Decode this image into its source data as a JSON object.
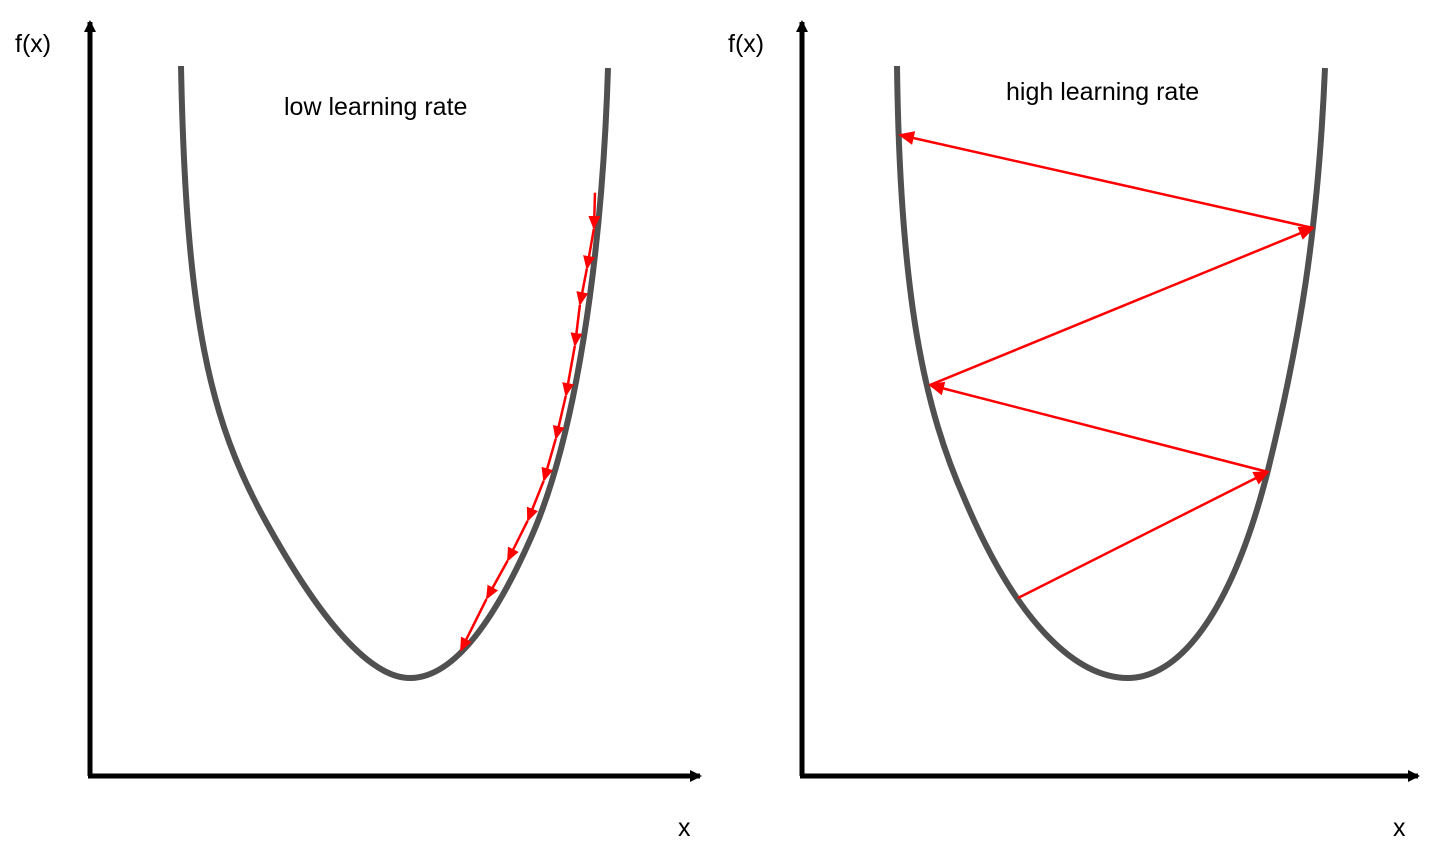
{
  "colors": {
    "background": "#ffffff",
    "axis": "#000000",
    "curve": "#505050",
    "arrow": "#ff0000",
    "text": "#000000"
  },
  "panels": [
    {
      "title": "low learning rate",
      "y_label": "f(x)",
      "x_label": "x",
      "step_size": "small",
      "step_count": 11
    },
    {
      "title": "high learning rate",
      "y_label": "f(x)",
      "x_label": "x",
      "step_size": "large",
      "step_count": 4
    }
  ]
}
